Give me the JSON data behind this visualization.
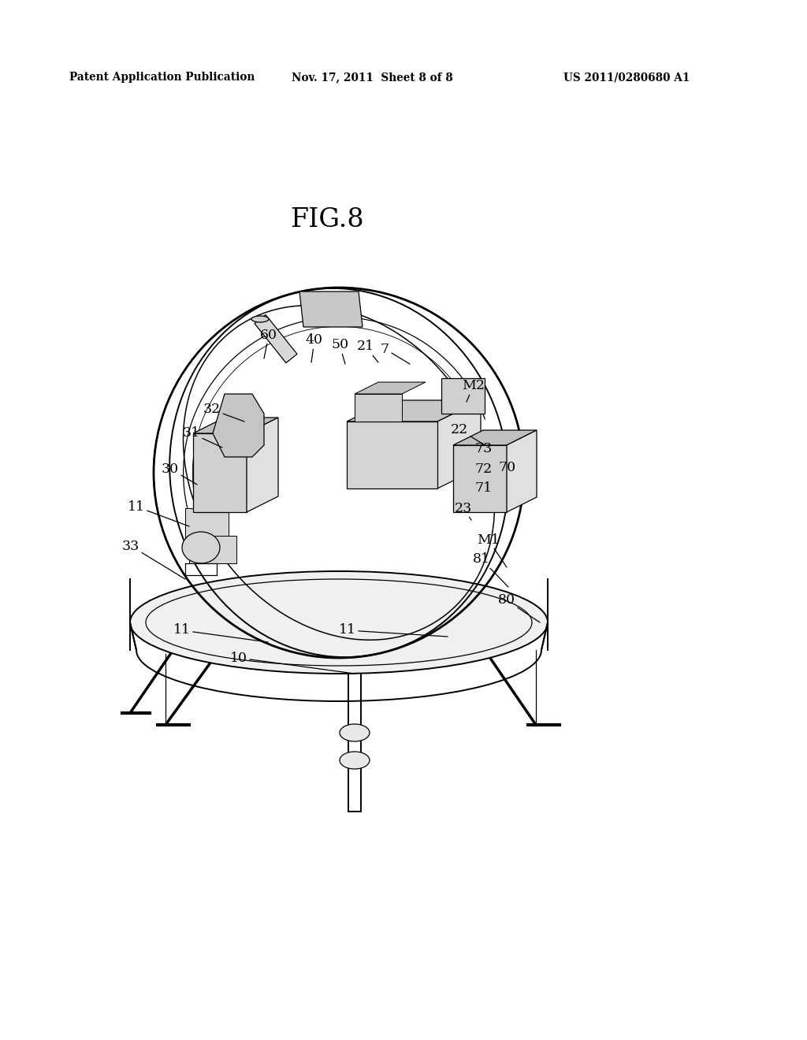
{
  "background_color": "#ffffff",
  "header_left": "Patent Application Publication",
  "header_center": "Nov. 17, 2011  Sheet 8 of 8",
  "header_right": "US 2011/0280680 A1",
  "fig_label": "FIG.8",
  "figsize": [
    10.24,
    13.2
  ],
  "dpi": 100
}
